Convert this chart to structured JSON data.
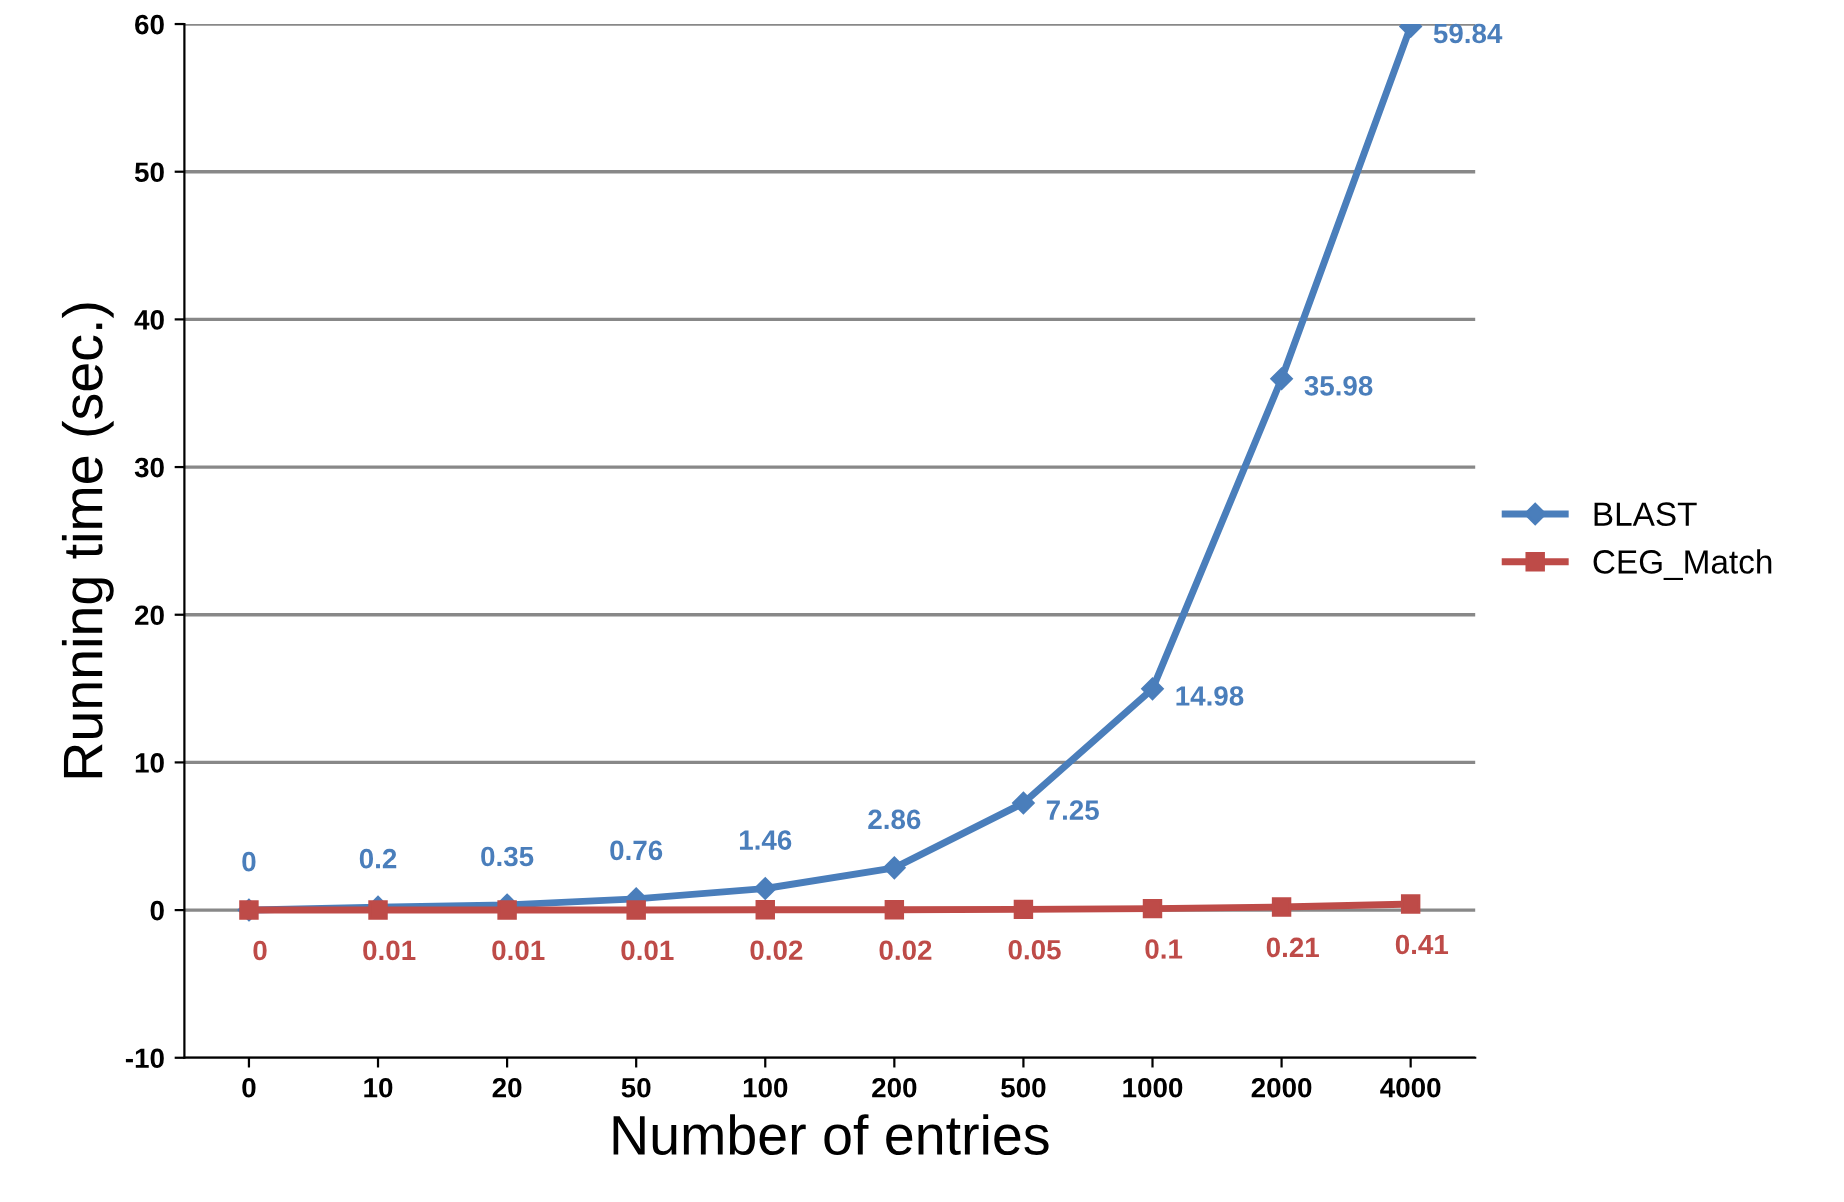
{
  "chart_data": {
    "type": "line",
    "xlabel": "Number of entries",
    "ylabel": "Running time (sec.)",
    "categories": [
      "0",
      "10",
      "20",
      "50",
      "100",
      "200",
      "500",
      "1000",
      "2000",
      "4000"
    ],
    "series": [
      {
        "name": "BLAST",
        "color": "#4a7ebb",
        "marker": "diamond",
        "values": [
          0,
          0.2,
          0.35,
          0.76,
          1.46,
          2.86,
          7.25,
          14.98,
          35.98,
          59.84
        ]
      },
      {
        "name": "CEG_Match",
        "color": "#be4b48",
        "marker": "square",
        "values": [
          0,
          0.01,
          0.01,
          0.01,
          0.02,
          0.02,
          0.05,
          0.1,
          0.21,
          0.41
        ]
      }
    ],
    "ylim": [
      -10,
      60
    ],
    "yticks": [
      -10,
      0,
      10,
      20,
      30,
      40,
      50,
      60
    ],
    "grid": "y",
    "legend": "right",
    "data_labels": true,
    "line_style": "solid"
  }
}
